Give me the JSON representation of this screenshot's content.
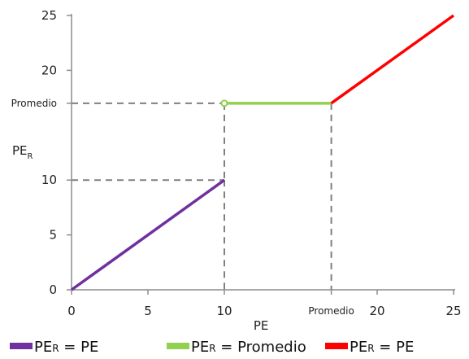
{
  "chart_data": {
    "type": "line",
    "xlabel": "PE",
    "ylabel": {
      "main": "PE",
      "sub": "R"
    },
    "xlim": [
      0,
      25
    ],
    "ylim": [
      0,
      25
    ],
    "grid": false,
    "legend_placement": "bottom",
    "x_ticks": [
      {
        "value": 0,
        "label": "0"
      },
      {
        "value": 5,
        "label": "5"
      },
      {
        "value": 10,
        "label": "10"
      },
      {
        "value": 17,
        "label": "Promedio"
      },
      {
        "value": 20,
        "label": "20"
      },
      {
        "value": 25,
        "label": "25"
      }
    ],
    "y_ticks": [
      {
        "value": 0,
        "label": "0"
      },
      {
        "value": 5,
        "label": "5"
      },
      {
        "value": 10,
        "label": "10"
      },
      {
        "value": 17,
        "label": "Promedio"
      },
      {
        "value": 20,
        "label": "20"
      },
      {
        "value": 25,
        "label": "25"
      }
    ],
    "series": [
      {
        "legend": {
          "main": "PE",
          "sub": "R",
          "rest": " = PE"
        },
        "color": "#7030A0",
        "x": [
          0,
          10
        ],
        "y": [
          0,
          10
        ],
        "open_start": false
      },
      {
        "legend": {
          "main": "PE",
          "sub": "R",
          "rest": " = Promedio"
        },
        "color": "#92D050",
        "x": [
          10,
          17
        ],
        "y": [
          17,
          17
        ],
        "open_start": true
      },
      {
        "legend": {
          "main": "PE",
          "sub": "R",
          "rest": " = PE"
        },
        "color": "#FF0000",
        "x": [
          17,
          25
        ],
        "y": [
          17,
          25
        ],
        "open_start": false
      }
    ],
    "guides": [
      {
        "from": [
          0,
          10
        ],
        "to": [
          10,
          10
        ]
      },
      {
        "from": [
          10,
          10
        ],
        "to": [
          10,
          0
        ]
      },
      {
        "from": [
          0,
          17
        ],
        "to": [
          10,
          17
        ]
      },
      {
        "from": [
          10,
          17
        ],
        "to": [
          10,
          10
        ]
      },
      {
        "from": [
          17,
          17
        ],
        "to": [
          17,
          0
        ]
      }
    ],
    "colors": {
      "axis": "#8c8c8c",
      "guide": "#808080"
    }
  }
}
